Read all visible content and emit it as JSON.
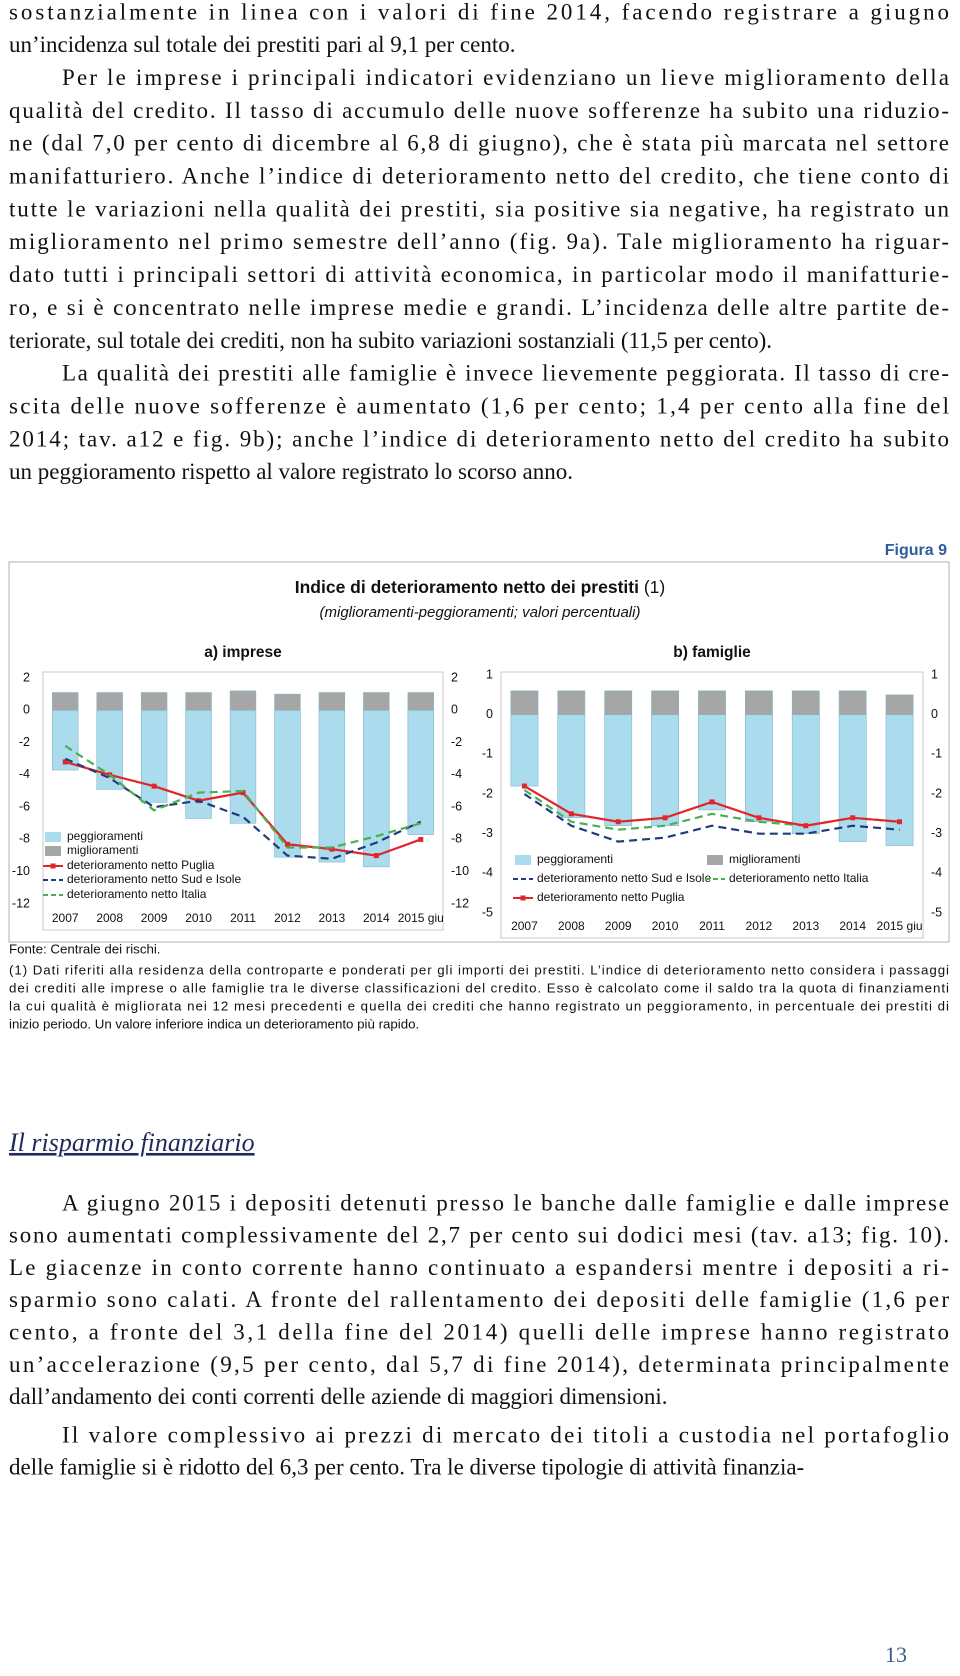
{
  "body": {
    "paragraphs": [
      {
        "lines": [
          "sostanzialmente in linea con i valori di fine 2014, facendo registrare a giugno",
          "un’incidenza sul totale dei prestiti pari al 9,1 per cento."
        ]
      },
      {
        "lines": [
          "Per le imprese i principali indicatori evidenziano un lieve miglioramento della",
          "qualità del credito. Il tasso di accumulo delle nuove sofferenze ha subito una riduzio-",
          "ne (dal 7,0 per cento di dicembre al 6,8 di giugno), che è stata più marcata  nel settore",
          "manifatturiero. Anche l’indice di deterioramento netto del credito, che tiene conto di",
          "tutte le variazioni nella qualità dei prestiti, sia positive sia negative, ha registrato un",
          "miglioramento nel primo semestre dell’anno (fig. 9a). Tale miglioramento ha riguar-",
          "dato tutti i principali settori di attività economica, in particolar modo il manifatturie-",
          "ro, e si è concentrato nelle imprese medie e grandi. L’incidenza delle altre partite de-",
          "teriorate, sul totale dei crediti, non ha subito variazioni sostanziali (11,5 per cento)."
        ]
      },
      {
        "lines": [
          "La qualità dei prestiti alle famiglie è invece lievemente peggiorata. Il tasso di cre-",
          "scita delle nuove sofferenze è aumentato (1,6 per cento; 1,4 per cento alla fine del",
          "2014; tav. a12 e fig. 9b); anche l’indice di deterioramento netto del credito ha subito",
          "un peggioramento rispetto al valore registrato lo scorso anno."
        ]
      }
    ]
  },
  "figure": {
    "label": "Figura 9",
    "title": "Indice di deterioramento netto dei prestiti",
    "title_ref": "(1)",
    "subtitle": "(miglioramenti-peggioramenti; valori percentuali)",
    "source": "Fonte: Centrale dei rischi.",
    "note_lines": [
      "(1) Dati riferiti alla residenza della controparte e ponderati per gli importi dei prestiti. L’indice di deterioramento netto considera i passaggi",
      "dei crediti alle imprese o alle famiglie tra le diverse classificazioni del credito. Esso è calcolato come il saldo tra la quota di finanziamenti",
      "la cui qualità è migliorata nei 12 mesi precedenti e quella dei crediti che hanno registrato un peggioramento, in percentuale dei prestiti di",
      "inizio periodo. Un valore inferiore indica un deterioramento più rapido."
    ]
  },
  "chart_data": [
    {
      "type": "combo",
      "title": "a) imprese",
      "categories": [
        "2007",
        "2008",
        "2009",
        "2010",
        "2011",
        "2012",
        "2013",
        "2014",
        "2015 giu"
      ],
      "series": [
        {
          "name": "peggioramenti",
          "kind": "bar",
          "color": "#aadcee",
          "values": [
            -3.7,
            -4.9,
            -5.7,
            -6.7,
            -7.0,
            -9.1,
            -9.4,
            -9.7,
            -7.7
          ]
        },
        {
          "name": "miglioramenti",
          "kind": "bar",
          "color": "#a6a6a6",
          "values": [
            1.1,
            1.1,
            1.1,
            1.1,
            1.2,
            1.0,
            1.1,
            1.1,
            1.1
          ]
        },
        {
          "name": "deterioramento netto Puglia",
          "kind": "line",
          "color": "#e0262b",
          "marker": true,
          "values": [
            -3.2,
            -4.0,
            -4.7,
            -5.6,
            -5.1,
            -8.3,
            -8.6,
            -9.0,
            -8.0
          ]
        },
        {
          "name": "deterioramento netto Sud e Isole",
          "kind": "line",
          "color": "#1f3d7a",
          "dash": true,
          "values": [
            -3.0,
            -4.2,
            -6.0,
            -5.6,
            -6.6,
            -9.0,
            -9.2,
            -8.2,
            -6.9
          ]
        },
        {
          "name": "deterioramento netto Italia",
          "kind": "line",
          "color": "#4caf50",
          "dash": true,
          "values": [
            -2.2,
            -4.0,
            -6.2,
            -5.1,
            -5.0,
            -8.5,
            -8.5,
            -7.8,
            -7.0
          ]
        }
      ],
      "ylim": [
        -12,
        2
      ],
      "yticks": [
        2,
        0,
        -2,
        -4,
        -6,
        -8,
        -10,
        -12
      ]
    },
    {
      "type": "combo",
      "title": "b) famiglie",
      "categories": [
        "2007",
        "2008",
        "2009",
        "2010",
        "2011",
        "2012",
        "2013",
        "2014",
        "2015 giu"
      ],
      "series": [
        {
          "name": "peggioramenti",
          "kind": "bar",
          "color": "#aadcee",
          "values": [
            -1.8,
            -2.6,
            -2.8,
            -2.8,
            -2.4,
            -2.7,
            -3.0,
            -3.2,
            -3.3
          ]
        },
        {
          "name": "miglioramenti",
          "kind": "bar",
          "color": "#a6a6a6",
          "values": [
            0.6,
            0.6,
            0.6,
            0.6,
            0.6,
            0.6,
            0.6,
            0.6,
            0.5
          ]
        },
        {
          "name": "deterioramento netto Sud e Isole",
          "kind": "line",
          "color": "#1f3d7a",
          "dash": true,
          "values": [
            -2.0,
            -2.8,
            -3.2,
            -3.1,
            -2.8,
            -3.0,
            -3.0,
            -2.8,
            -2.9
          ]
        },
        {
          "name": "deterioramento netto Italia",
          "kind": "line",
          "color": "#4caf50",
          "dash": true,
          "values": [
            -1.9,
            -2.7,
            -2.9,
            -2.8,
            -2.5,
            -2.7,
            -2.8,
            -2.6,
            -2.7
          ]
        },
        {
          "name": "deterioramento netto Puglia",
          "kind": "line",
          "color": "#e0262b",
          "marker": true,
          "values": [
            -1.8,
            -2.5,
            -2.7,
            -2.6,
            -2.2,
            -2.6,
            -2.8,
            -2.6,
            -2.7
          ]
        }
      ],
      "ylim": [
        -5,
        1
      ],
      "yticks": [
        1,
        0,
        -1,
        -2,
        -3,
        -4,
        -5
      ]
    }
  ],
  "section": {
    "heading": "Il risparmio finanziario",
    "paragraphs": [
      {
        "lines": [
          "A giugno 2015 i depositi detenuti presso le banche dalle famiglie e dalle imprese",
          "sono aumentati complessivamente del 2,7 per cento sui dodici mesi (tav. a13; fig. 10).",
          "Le giacenze in conto corrente hanno continuato a espandersi mentre i depositi a ri-",
          "sparmio sono calati. A fronte del rallentamento dei depositi delle famiglie (1,6 per",
          "cento, a fronte del 3,1 della fine del 2014) quelli delle imprese hanno registrato",
          "un’accelerazione (9,5 per cento, dal 5,7 di fine 2014), determinata principalmente",
          "dall’andamento dei conti correnti delle aziende di maggiori dimensioni."
        ]
      },
      {
        "lines": [
          "Il valore complessivo ai prezzi di mercato dei titoli a custodia nel portafoglio",
          "delle famiglie si è ridotto del 6,3 per cento. Tra le diverse tipologie di attività finanzia-"
        ]
      }
    ]
  },
  "page_number": "13"
}
